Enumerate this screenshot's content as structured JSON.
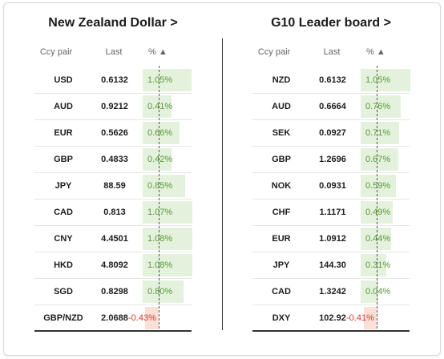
{
  "left": {
    "title": "New Zealand Dollar >",
    "headers": {
      "pair": "Ccy pair",
      "last": "Last",
      "pct": "% ▲"
    },
    "rows": [
      {
        "pair": "USD",
        "last": "0.6132",
        "pct": "1.05%",
        "value": 1.05
      },
      {
        "pair": "AUD",
        "last": "0.9212",
        "pct": "0.41%",
        "value": 0.41
      },
      {
        "pair": "EUR",
        "last": "0.5626",
        "pct": "0.66%",
        "value": 0.66
      },
      {
        "pair": "GBP",
        "last": "0.4833",
        "pct": "0.42%",
        "value": 0.42
      },
      {
        "pair": "JPY",
        "last": "88.59",
        "pct": "0.85%",
        "value": 0.85
      },
      {
        "pair": "CAD",
        "last": "0.813",
        "pct": "1.07%",
        "value": 1.07
      },
      {
        "pair": "CNY",
        "last": "4.4501",
        "pct": "1.08%",
        "value": 1.08
      },
      {
        "pair": "HKD",
        "last": "4.8092",
        "pct": "1.08%",
        "value": 1.08
      },
      {
        "pair": "SGD",
        "last": "0.8298",
        "pct": "0.80%",
        "value": 0.8
      },
      {
        "pair": "GBP/NZD",
        "last": "2.0688",
        "pct": "-0.43%",
        "value": -0.43
      }
    ]
  },
  "right": {
    "title": "G10 Leader board >",
    "headers": {
      "pair": "Ccy pair",
      "last": "Last",
      "pct": "% ▲"
    },
    "rows": [
      {
        "pair": "NZD",
        "last": "0.6132",
        "pct": "1.05%",
        "value": 1.05
      },
      {
        "pair": "AUD",
        "last": "0.6664",
        "pct": "0.76%",
        "value": 0.76
      },
      {
        "pair": "SEK",
        "last": "0.0927",
        "pct": "0.71%",
        "value": 0.71
      },
      {
        "pair": "GBP",
        "last": "1.2696",
        "pct": "0.67%",
        "value": 0.67
      },
      {
        "pair": "NOK",
        "last": "0.0931",
        "pct": "0.59%",
        "value": 0.59
      },
      {
        "pair": "CHF",
        "last": "1.1171",
        "pct": "0.49%",
        "value": 0.49
      },
      {
        "pair": "EUR",
        "last": "1.0912",
        "pct": "0.44%",
        "value": 0.44
      },
      {
        "pair": "JPY",
        "last": "144.30",
        "pct": "0.31%",
        "value": 0.31
      },
      {
        "pair": "CAD",
        "last": "1.3242",
        "pct": "0.04%",
        "value": 0.04
      },
      {
        "pair": "DXY",
        "last": "102.92",
        "pct": "-0.41%",
        "value": -0.41
      }
    ]
  },
  "colors": {
    "positive": "#5a9a3a",
    "negative": "#d53a2b",
    "positive_bg": "#e4f1dc",
    "negative_bg": "#fbe0d8"
  }
}
